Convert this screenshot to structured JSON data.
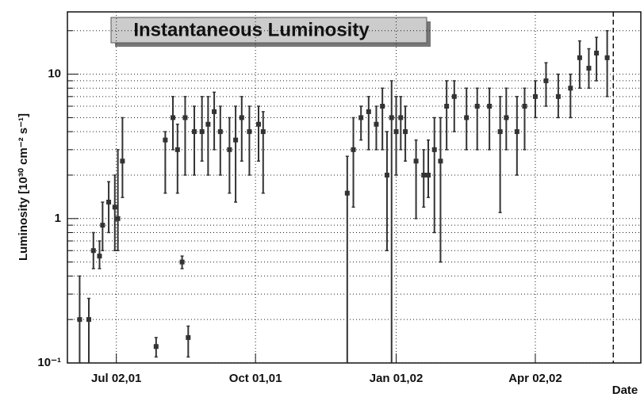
{
  "chart_data": {
    "type": "errorbar",
    "title": "Instantaneous Luminosity",
    "xlabel": "Date",
    "ylabel": "Luminosity [10³⁰ cm⁻² s⁻¹]",
    "log_y": true,
    "grid": true,
    "color": "#333333",
    "xlim": [
      "2001-05-31",
      "2002-06-10"
    ],
    "xticks": [
      {
        "value": "2001-07-02",
        "label": "Jul 02,01"
      },
      {
        "value": "2001-10-01",
        "label": "Oct 01,01"
      },
      {
        "value": "2002-01-01",
        "label": "Jan 01,02"
      },
      {
        "value": "2002-04-02",
        "label": "Apr 02,02"
      }
    ],
    "ylim": [
      0.1,
      27
    ],
    "yticks": [
      {
        "value": 0.1,
        "label": "10⁻¹"
      },
      1,
      10
    ],
    "yminor": [
      0.2,
      0.3,
      0.4,
      0.5,
      0.6,
      0.7,
      0.8,
      0.9,
      2,
      3,
      4,
      5,
      6,
      7,
      8,
      9,
      20
    ],
    "vline": "2002-05-23",
    "x": [
      "2001-06-08",
      "2001-06-14",
      "2001-06-17",
      "2001-06-21",
      "2001-06-23",
      "2001-06-27",
      "2001-07-01",
      "2001-07-03",
      "2001-07-06",
      "2001-07-28",
      "2001-08-03",
      "2001-08-08",
      "2001-08-11",
      "2001-08-14",
      "2001-08-16",
      "2001-08-18",
      "2001-08-22",
      "2001-08-27",
      "2001-08-31",
      "2001-09-04",
      "2001-09-08",
      "2001-09-14",
      "2001-09-18",
      "2001-09-22",
      "2001-09-27",
      "2001-10-03",
      "2001-10-06",
      "2001-11-30",
      "2001-12-04",
      "2001-12-09",
      "2001-12-14",
      "2001-12-19",
      "2001-12-23",
      "2001-12-26",
      "2001-12-29",
      "2002-01-01",
      "2002-01-04",
      "2002-01-07",
      "2002-01-14",
      "2002-01-19",
      "2002-01-22",
      "2002-01-26",
      "2002-01-30",
      "2002-02-03",
      "2002-02-08",
      "2002-02-16",
      "2002-02-23",
      "2002-03-03",
      "2002-03-10",
      "2002-03-14",
      "2002-03-21",
      "2002-03-26",
      "2002-04-02",
      "2002-04-09",
      "2002-04-17",
      "2002-04-25",
      "2002-05-01",
      "2002-05-07",
      "2002-05-12",
      "2002-05-19"
    ],
    "values": [
      0.2,
      0.2,
      0.6,
      0.55,
      0.9,
      1.3,
      1.2,
      1.0,
      2.5,
      0.13,
      3.5,
      5,
      3,
      0.5,
      5,
      0.15,
      4,
      4,
      4.5,
      5.5,
      4,
      3,
      3.5,
      5,
      4,
      4.5,
      4,
      1.5,
      3,
      5,
      5.5,
      4.5,
      6,
      2,
      5,
      4,
      5,
      4,
      2.5,
      2,
      2,
      3,
      2.5,
      6,
      7,
      5,
      6,
      6,
      4,
      5,
      4,
      6,
      7,
      9,
      7,
      8,
      13,
      11,
      14,
      13
    ],
    "low": [
      0.1,
      0.1,
      0.45,
      0.45,
      0.6,
      0.8,
      0.6,
      0.6,
      1.4,
      0.11,
      1.5,
      3,
      1.5,
      0.45,
      2,
      0.11,
      2,
      2.5,
      2,
      3,
      2,
      1.5,
      1.3,
      2.5,
      2,
      2.5,
      1.5,
      0.1,
      1.2,
      3.5,
      3,
      3,
      3,
      0.6,
      0.1,
      2,
      3,
      2.5,
      1,
      1.2,
      1.4,
      0.8,
      0.5,
      3,
      4,
      3,
      3,
      3,
      1.1,
      3,
      2,
      3,
      5,
      6,
      5,
      5,
      8,
      8,
      9,
      7
    ],
    "high": [
      0.4,
      0.28,
      0.8,
      0.7,
      1.3,
      1.8,
      2.0,
      3.0,
      5.0,
      0.15,
      4.0,
      7,
      4.5,
      0.55,
      7,
      0.18,
      6,
      7,
      7,
      7.5,
      6,
      5,
      6,
      7,
      6,
      6,
      5.5,
      2.7,
      5,
      6,
      7,
      6,
      8,
      4,
      9,
      7,
      7,
      6,
      3.5,
      3,
      3.5,
      5,
      5,
      9,
      9,
      8,
      8,
      8,
      7,
      8,
      7,
      8,
      9,
      12,
      10,
      10,
      17,
      15,
      18,
      20
    ]
  }
}
